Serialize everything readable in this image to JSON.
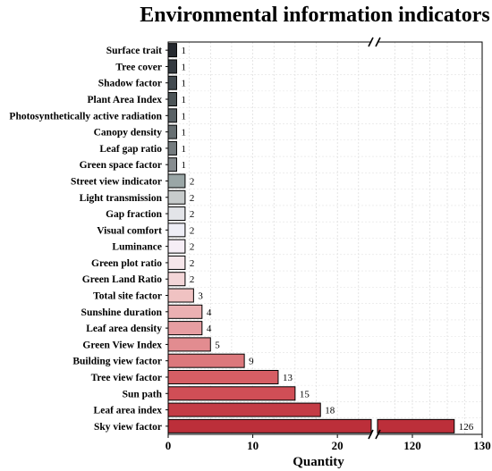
{
  "chart_data": {
    "type": "bar",
    "orientation": "horizontal",
    "title": "Environmental  information indicators",
    "xlabel": "Quantity",
    "ylabel": "",
    "broken_axis": true,
    "xlim_segments": [
      [
        0,
        24
      ],
      [
        115,
        130
      ]
    ],
    "xticks": [
      0,
      10,
      20,
      120,
      130
    ],
    "grid": true,
    "categories": [
      "Surface trait",
      "Tree cover",
      "Shadow factor",
      "Plant Area Index",
      "Photosynthetically active radiation",
      "Canopy density",
      "Leaf gap ratio",
      "Green space factor",
      "Street view indicator",
      "Light transmission",
      "Gap fraction",
      "Visual comfort",
      "Luminance",
      "Green plot ratio",
      "Green Land Ratio",
      "Total site factor",
      "Sunshine duration",
      "Leaf area density",
      "Green View Index",
      "Building view factor",
      "Tree view factor",
      "Sun path",
      "Leaf area index",
      "Sky view factor"
    ],
    "values": [
      1,
      1,
      1,
      1,
      1,
      1,
      1,
      1,
      2,
      2,
      2,
      2,
      2,
      2,
      2,
      3,
      4,
      4,
      5,
      9,
      13,
      15,
      18,
      126
    ],
    "colors": [
      "#262a30",
      "#343a40",
      "#424a50",
      "#4d5558",
      "#5a6266",
      "#676f72",
      "#757c7f",
      "#878d90",
      "#9aa6a6",
      "#c7cbcb",
      "#e3e4e8",
      "#eeeef6",
      "#f6eef6",
      "#f6e6ea",
      "#f3d6d8",
      "#f0c2c2",
      "#ebb0b2",
      "#e79ea2",
      "#e28c90",
      "#dc787c",
      "#d65e64",
      "#d04e56",
      "#c43c46",
      "#bc2f3a"
    ]
  }
}
